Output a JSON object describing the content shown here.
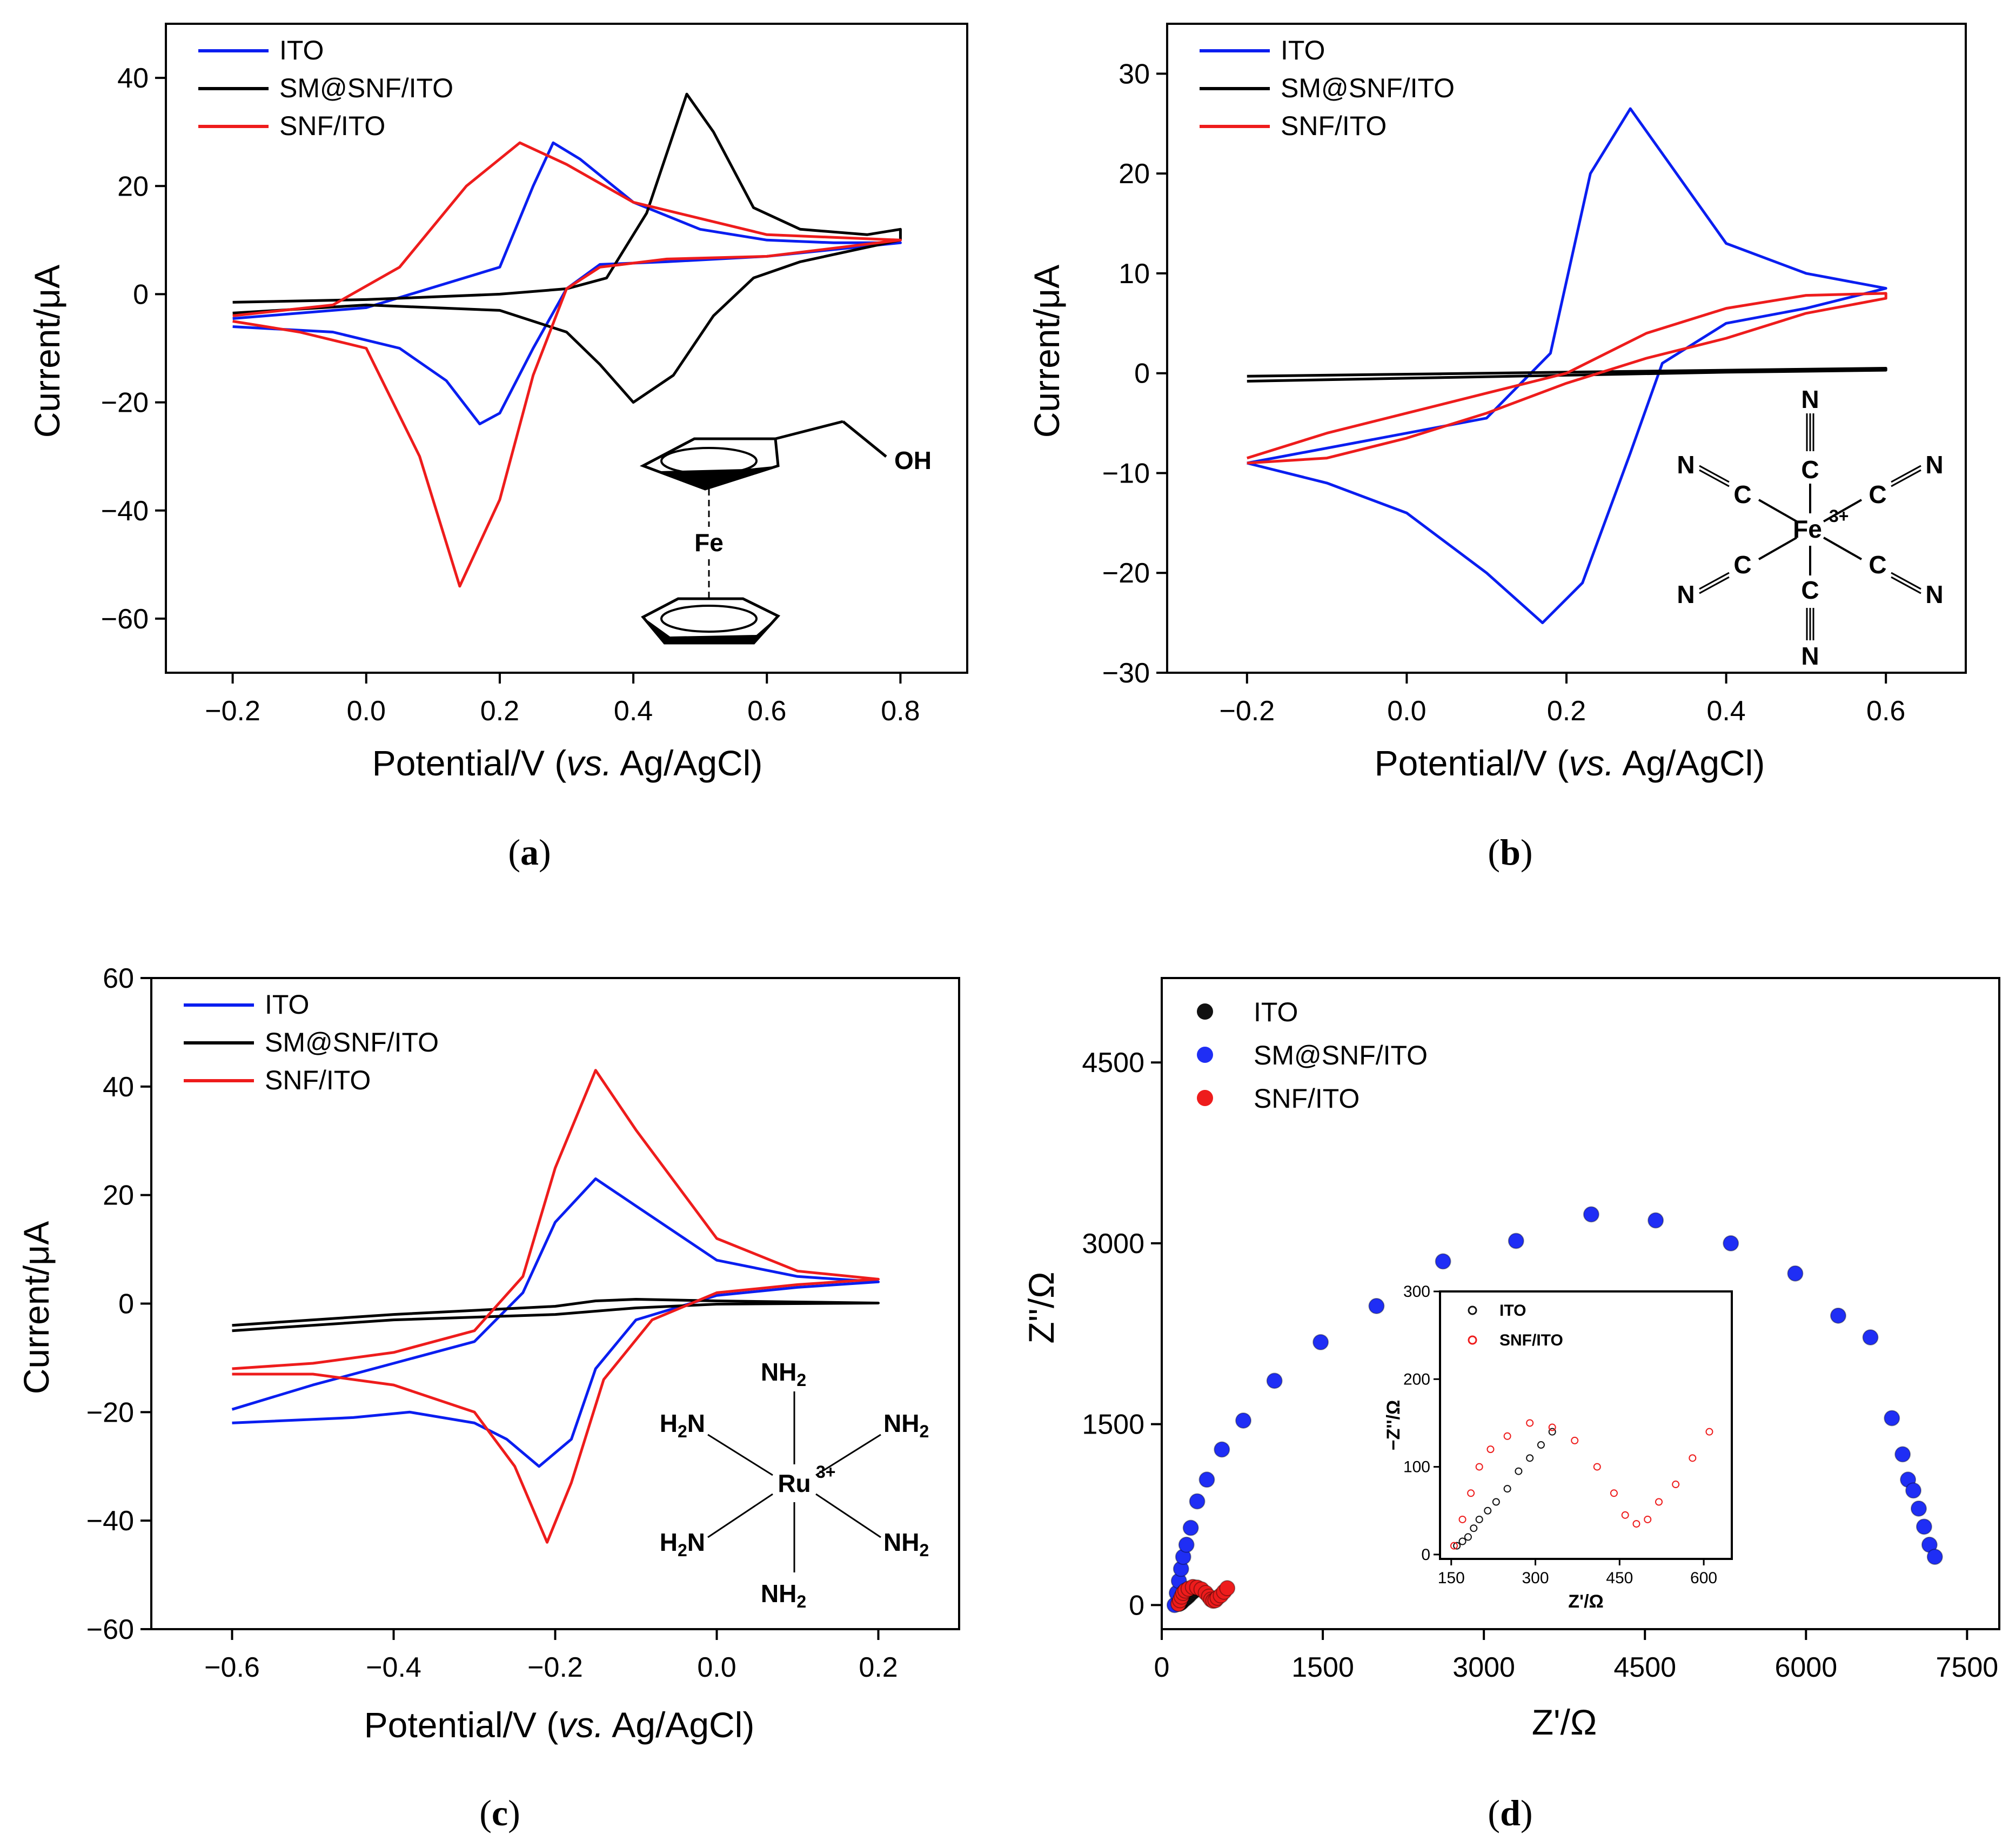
{
  "chart_data": [
    {
      "panel": "(a)",
      "panel_letter": "a",
      "type": "line",
      "xlabel_pre": "Potential/V (",
      "xlabel_ital": "vs.",
      "xlabel_post": " Ag/AgCl)",
      "ylabel": "Current/μA",
      "xlim": [
        -0.3,
        0.9
      ],
      "ylim": [
        -70,
        50
      ],
      "xticks": [
        -0.2,
        0.0,
        0.2,
        0.4,
        0.6,
        0.8
      ],
      "xtick_labels": [
        "−0.2",
        "0.0",
        "0.2",
        "0.4",
        "0.6",
        "0.8"
      ],
      "yticks": [
        -60,
        -40,
        -20,
        0,
        20,
        40
      ],
      "ytick_labels": [
        "−60",
        "−40",
        "−20",
        "0",
        "20",
        "40"
      ],
      "legend": [
        "ITO",
        "SM@SNF/ITO",
        "SNF/ITO"
      ],
      "inset_labels": [
        "OH",
        "Fe"
      ],
      "series": [
        {
          "name": "ITO",
          "color": "#0a1ef0",
          "x": [
            -0.2,
            0.0,
            0.2,
            0.25,
            0.28,
            0.32,
            0.4,
            0.5,
            0.6,
            0.7,
            0.8,
            0.8,
            0.6,
            0.45,
            0.35,
            0.3,
            0.25,
            0.2,
            0.17,
            0.12,
            0.05,
            -0.05,
            -0.2
          ],
          "y": [
            -4.5,
            -2.5,
            5,
            20,
            28,
            25,
            17,
            12,
            10,
            9.5,
            9.5,
            9.5,
            7,
            6,
            5.5,
            1,
            -10,
            -22,
            -24,
            -16,
            -10,
            -7,
            -6
          ]
        },
        {
          "name": "SM@SNF/ITO",
          "color": "#000000",
          "x": [
            -0.2,
            0.0,
            0.2,
            0.3,
            0.36,
            0.42,
            0.48,
            0.52,
            0.58,
            0.65,
            0.75,
            0.8,
            0.8,
            0.65,
            0.58,
            0.52,
            0.46,
            0.4,
            0.35,
            0.3,
            0.2,
            0.0,
            -0.2
          ],
          "y": [
            -1.5,
            -1,
            0,
            1,
            3,
            15,
            37,
            30,
            16,
            12,
            11,
            12,
            10,
            6,
            3,
            -4,
            -15,
            -20,
            -13,
            -7,
            -3,
            -2,
            -3.5
          ]
        },
        {
          "name": "SNF/ITO",
          "color": "#ee1c1c",
          "x": [
            -0.2,
            -0.05,
            0.05,
            0.15,
            0.23,
            0.3,
            0.4,
            0.6,
            0.8,
            0.8,
            0.6,
            0.45,
            0.35,
            0.3,
            0.25,
            0.2,
            0.14,
            0.08,
            0.0,
            -0.1,
            -0.2
          ],
          "y": [
            -4,
            -2,
            5,
            20,
            28,
            24,
            17,
            11,
            10,
            10,
            7,
            6.5,
            5,
            1,
            -15,
            -38,
            -54,
            -30,
            -10,
            -7,
            -5
          ]
        }
      ]
    },
    {
      "panel": "(b)",
      "panel_letter": "b",
      "type": "line",
      "xlabel_pre": "Potential/V (",
      "xlabel_ital": "vs.",
      "xlabel_post": " Ag/AgCl)",
      "ylabel": "Current/μA",
      "xlim": [
        -0.3,
        0.7
      ],
      "ylim": [
        -30,
        35
      ],
      "xticks": [
        -0.2,
        0.0,
        0.2,
        0.4,
        0.6
      ],
      "xtick_labels": [
        "−0.2",
        "0.0",
        "0.2",
        "0.4",
        "0.6"
      ],
      "yticks": [
        -30,
        -20,
        -10,
        0,
        10,
        20,
        30
      ],
      "ytick_labels": [
        "−30",
        "−20",
        "−10",
        "0",
        "10",
        "20",
        "30"
      ],
      "legend": [
        "ITO",
        "SM@SNF/ITO",
        "SNF/ITO"
      ],
      "inset_labels": [
        "N",
        "C",
        "Fe",
        "3+"
      ],
      "series": [
        {
          "name": "ITO",
          "color": "#0a1ef0",
          "x": [
            -0.2,
            0.0,
            0.1,
            0.18,
            0.23,
            0.28,
            0.32,
            0.4,
            0.5,
            0.6,
            0.6,
            0.5,
            0.4,
            0.32,
            0.28,
            0.22,
            0.17,
            0.1,
            0.0,
            -0.1,
            -0.2
          ],
          "y": [
            -9,
            -6,
            -4.5,
            2,
            20,
            26.5,
            22,
            13,
            10,
            8.5,
            8.5,
            6.5,
            5,
            1,
            -8,
            -21,
            -25,
            -20,
            -14,
            -11,
            -9
          ]
        },
        {
          "name": "SM@SNF/ITO",
          "color": "#000000",
          "x": [
            -0.2,
            0.0,
            0.2,
            0.4,
            0.6,
            0.6,
            0.4,
            0.2,
            0.0,
            -0.2
          ],
          "y": [
            -0.3,
            -0.1,
            0.1,
            0.3,
            0.5,
            0.3,
            0.1,
            -0.2,
            -0.5,
            -0.8
          ]
        },
        {
          "name": "SNF/ITO",
          "color": "#ee1c1c",
          "x": [
            -0.2,
            -0.1,
            0.0,
            0.1,
            0.2,
            0.3,
            0.4,
            0.5,
            0.6,
            0.6,
            0.5,
            0.4,
            0.3,
            0.2,
            0.1,
            0.0,
            -0.1,
            -0.2
          ],
          "y": [
            -8.5,
            -6,
            -4,
            -2,
            0,
            4,
            6.5,
            7.8,
            8,
            7.5,
            6,
            3.5,
            1.5,
            -1,
            -4,
            -6.5,
            -8.5,
            -9
          ]
        }
      ]
    },
    {
      "panel": "(c)",
      "panel_letter": "c",
      "type": "line",
      "xlabel_pre": "Potential/V (",
      "xlabel_ital": "vs.",
      "xlabel_post": " Ag/AgCl)",
      "ylabel": "Current/μA",
      "xlim": [
        -0.7,
        0.3
      ],
      "ylim": [
        -60,
        60
      ],
      "xticks": [
        -0.6,
        -0.4,
        -0.2,
        0.0,
        0.2
      ],
      "xtick_labels": [
        "−0.6",
        "−0.4",
        "−0.2",
        "0.0",
        "0.2"
      ],
      "yticks": [
        -60,
        -40,
        -20,
        0,
        20,
        40,
        60
      ],
      "ytick_labels": [
        "−60",
        "−40",
        "−20",
        "0",
        "20",
        "40",
        "60"
      ],
      "legend": [
        "ITO",
        "SM@SNF/ITO",
        "SNF/ITO"
      ],
      "inset_labels": [
        "NH",
        "H",
        "N",
        "Ru",
        "3+",
        "2"
      ],
      "series": [
        {
          "name": "ITO",
          "color": "#0a1ef0",
          "x": [
            -0.6,
            -0.5,
            -0.4,
            -0.3,
            -0.24,
            -0.2,
            -0.15,
            -0.1,
            0.0,
            0.1,
            0.2,
            0.2,
            0.1,
            0.0,
            -0.1,
            -0.15,
            -0.18,
            -0.22,
            -0.26,
            -0.3,
            -0.38,
            -0.45,
            -0.6
          ],
          "y": [
            -19.5,
            -15,
            -11,
            -7,
            2,
            15,
            23,
            18,
            8,
            5,
            4,
            4,
            3,
            1.5,
            -3,
            -12,
            -25,
            -30,
            -25,
            -22,
            -20,
            -21,
            -22
          ]
        },
        {
          "name": "SM@SNF/ITO",
          "color": "#000000",
          "x": [
            -0.6,
            -0.4,
            -0.2,
            -0.15,
            -0.1,
            0.0,
            0.2,
            0.2,
            0.0,
            -0.1,
            -0.2,
            -0.4,
            -0.6
          ],
          "y": [
            -4,
            -2,
            -0.5,
            0.5,
            0.8,
            0.5,
            0.1,
            0.1,
            -0.1,
            -0.8,
            -2,
            -3,
            -5
          ]
        },
        {
          "name": "SNF/ITO",
          "color": "#ee1c1c",
          "x": [
            -0.6,
            -0.5,
            -0.4,
            -0.3,
            -0.24,
            -0.2,
            -0.15,
            -0.1,
            0.0,
            0.1,
            0.2,
            0.2,
            0.1,
            0.0,
            -0.08,
            -0.14,
            -0.18,
            -0.21,
            -0.25,
            -0.3,
            -0.4,
            -0.5,
            -0.6
          ],
          "y": [
            -12,
            -11,
            -9,
            -5,
            5,
            25,
            43,
            32,
            12,
            6,
            4.5,
            4.5,
            3.5,
            2,
            -3,
            -14,
            -33,
            -44,
            -30,
            -20,
            -15,
            -13,
            -13
          ]
        }
      ]
    },
    {
      "panel": "(d)",
      "panel_letter": "d",
      "type": "scatter",
      "xlabel": "Z'/Ω",
      "ylabel": "Z''/Ω",
      "xlim": [
        0,
        7800
      ],
      "ylim": [
        -200,
        5200
      ],
      "xticks": [
        0,
        1500,
        3000,
        4500,
        6000,
        7500
      ],
      "xtick_labels": [
        "0",
        "1500",
        "3000",
        "4500",
        "6000",
        "7500"
      ],
      "yticks": [
        0,
        1500,
        3000,
        4500
      ],
      "ytick_labels": [
        "0",
        "1500",
        "3000",
        "4500"
      ],
      "legend": [
        "ITO",
        "SM@SNF/ITO",
        "SNF/ITO"
      ],
      "series": [
        {
          "name": "ITO",
          "color": "#111111",
          "x": [
            160,
            170,
            180,
            190,
            200,
            215,
            230,
            250,
            270,
            290,
            310,
            330
          ],
          "y": [
            10,
            15,
            20,
            30,
            40,
            50,
            60,
            75,
            95,
            110,
            125,
            140
          ]
        },
        {
          "name": "SM@SNF/ITO",
          "color": "#1f2ef5",
          "x": [
            120,
            140,
            160,
            180,
            200,
            230,
            270,
            330,
            420,
            560,
            760,
            1050,
            1480,
            2000,
            2620,
            3300,
            4000,
            4600,
            5300,
            5900,
            6300,
            6600,
            6800,
            6900,
            6950,
            7000,
            7050,
            7100,
            7150,
            7200
          ],
          "y": [
            0,
            100,
            200,
            300,
            400,
            500,
            640,
            860,
            1040,
            1290,
            1530,
            1860,
            2180,
            2480,
            2850,
            3020,
            3240,
            3190,
            3000,
            2750,
            2400,
            2220,
            1550,
            1250,
            1040,
            950,
            800,
            650,
            500,
            400
          ]
        },
        {
          "name": "SNF/ITO",
          "color": "#ee1c1c",
          "x": [
            155,
            170,
            185,
            200,
            220,
            250,
            290,
            330,
            370,
            410,
            440,
            460,
            480,
            500,
            520,
            550,
            580,
            610
          ],
          "y": [
            10,
            40,
            70,
            100,
            120,
            135,
            150,
            145,
            130,
            100,
            70,
            45,
            35,
            40,
            60,
            80,
            110,
            140
          ]
        }
      ],
      "inset": {
        "xlim": [
          130,
          650
        ],
        "ylim": [
          -5,
          300
        ],
        "xticks": [
          150,
          300,
          450,
          600
        ],
        "xtick_labels": [
          "150",
          "300",
          "450",
          "600"
        ],
        "yticks": [
          0,
          100,
          200,
          300
        ],
        "ytick_labels": [
          "0",
          "100",
          "200",
          "300"
        ],
        "xlabel": "Z'/Ω",
        "ylabel": "−Z''/Ω",
        "legend": [
          "ITO",
          "SNF/ITO"
        ]
      }
    }
  ]
}
